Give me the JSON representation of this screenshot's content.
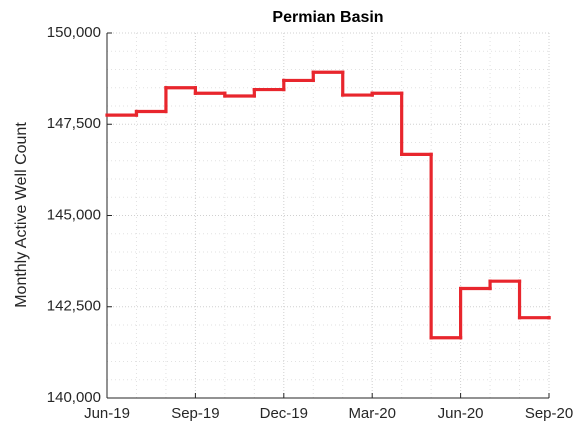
{
  "chart_data": {
    "type": "step",
    "title": "Permian Basin",
    "y_label": "Monthly Active Well Count",
    "categories": [
      "Jun-19",
      null,
      null,
      "Sep-19",
      null,
      null,
      "Dec-19",
      null,
      null,
      "Mar-20",
      null,
      null,
      "Jun-20",
      null,
      null,
      "Sep-20"
    ],
    "series": [
      {
        "name": "Permian Basin",
        "color": "#e8262d",
        "values": [
          147750,
          147850,
          148500,
          148350,
          148275,
          148450,
          148700,
          148925,
          148300,
          148350,
          146675,
          141650,
          143000,
          143200,
          142200,
          142200
        ]
      }
    ],
    "ylim": [
      140000,
      150000
    ],
    "yticks": [
      {
        "value": 140000,
        "label": "140,000"
      },
      {
        "value": 142500,
        "label": "142,500"
      },
      {
        "value": 145000,
        "label": "145,000"
      },
      {
        "value": 147500,
        "label": "147,500"
      },
      {
        "value": 150000,
        "label": "150,000"
      }
    ],
    "grid": true,
    "minor_grid": true
  }
}
